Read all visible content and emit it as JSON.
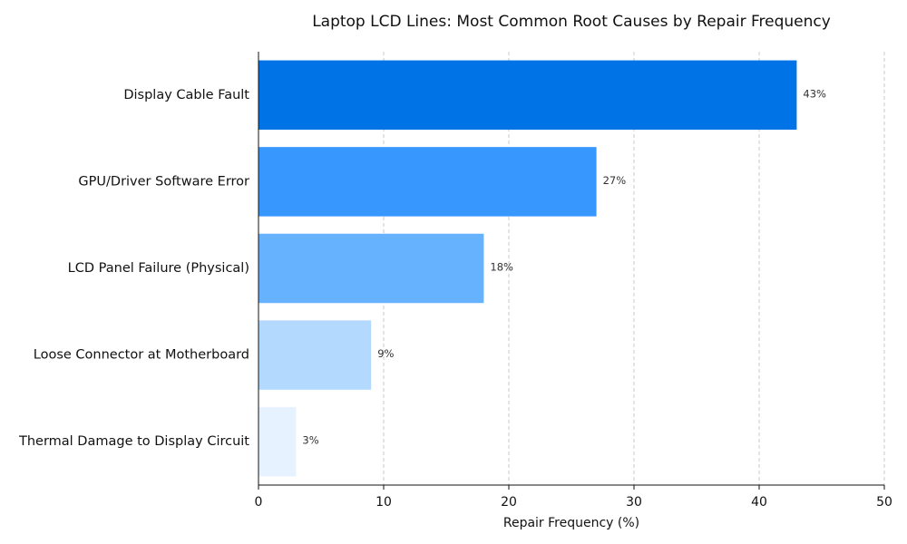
{
  "chart_data": {
    "type": "bar",
    "orientation": "horizontal",
    "title": "Laptop LCD Lines: Most Common Root Causes by Repair Frequency",
    "xlabel": "Repair Frequency (%)",
    "ylabel": "",
    "xlim": [
      0,
      50
    ],
    "xticks": [
      0,
      10,
      20,
      30,
      40,
      50
    ],
    "grid": "x-dashed",
    "categories": [
      "Display Cable Fault",
      "GPU/Driver Software Error",
      "LCD Panel Failure (Physical)",
      "Loose Connector at Motherboard",
      "Thermal Damage to Display Circuit"
    ],
    "values": [
      43,
      27,
      18,
      9,
      3
    ],
    "data_labels": [
      "43%",
      "27%",
      "18%",
      "9%",
      "3%"
    ],
    "colors": [
      "#0073e6",
      "#3797ff",
      "#66b2ff",
      "#b3d9ff",
      "#e6f2ff"
    ]
  }
}
